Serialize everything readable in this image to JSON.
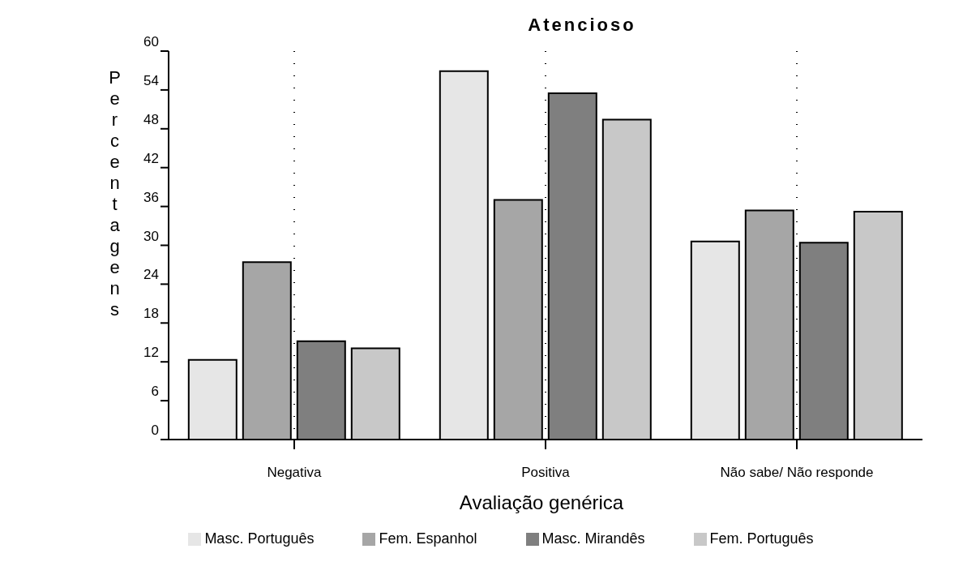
{
  "chart_data": {
    "type": "bar",
    "title": "Atencioso",
    "xlabel": "Avaliação  genérica",
    "ylabel": "Percentagens",
    "categories": [
      "Negativa",
      "Positiva",
      "Não sabe/ Não responde"
    ],
    "series": [
      {
        "name": "Masc. Português",
        "color": "#e6e6e6",
        "values": [
          12.3,
          56.9,
          30.6
        ]
      },
      {
        "name": "Fem. Espanhol",
        "color": "#a6a6a6",
        "values": [
          27.4,
          37.0,
          35.4
        ]
      },
      {
        "name": "Masc. Mirandês",
        "color": "#7f7f7f",
        "values": [
          15.2,
          53.5,
          30.4
        ]
      },
      {
        "name": "Fem. Português",
        "color": "#c8c8c8",
        "values": [
          14.1,
          49.4,
          35.2
        ]
      }
    ],
    "ylim": [
      0,
      60
    ],
    "yticks": [
      0,
      6,
      12,
      18,
      24,
      30,
      36,
      42,
      48,
      54,
      60
    ],
    "grid": "x",
    "legend": "bottom"
  }
}
